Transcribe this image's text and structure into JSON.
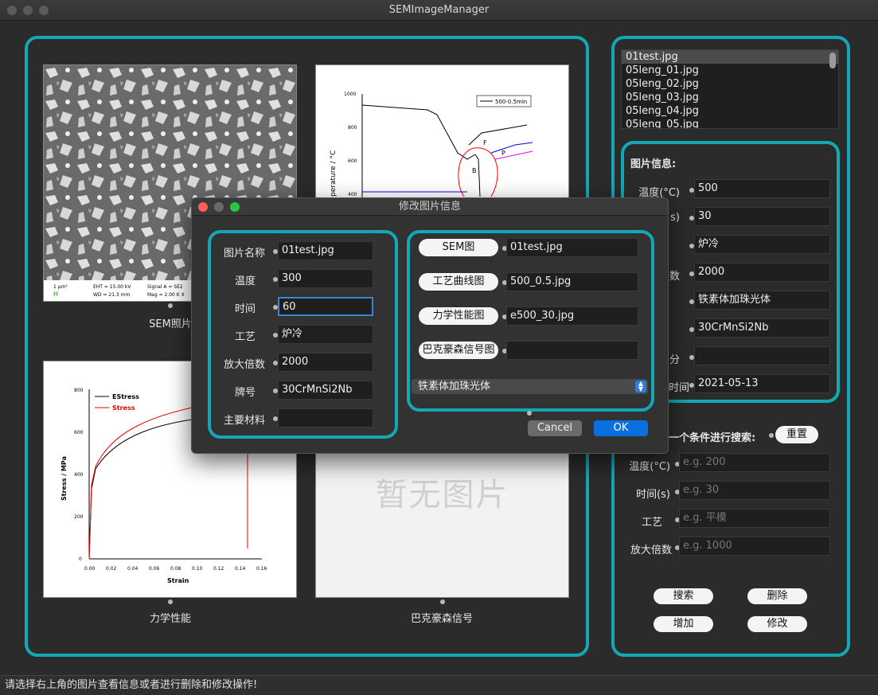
{
  "window": {
    "title": "SEMImageManager"
  },
  "images": {
    "sem": {
      "caption": "SEM照片",
      "info": [
        "1 μm²",
        "EHT = 15.00 kV",
        "Signal A = SE2",
        "WD = 21.3 mm",
        "Mag = 2.00 K X"
      ]
    },
    "curve": {
      "ylabel": "perature / °C",
      "legend": "500-0.5min",
      "yticks": [
        "1000",
        "800",
        "600",
        "400"
      ],
      "labels": [
        "F",
        "P",
        "B"
      ]
    },
    "mech": {
      "caption": "力学性能",
      "ylabel": "Stress / MPa",
      "xlabel": "Strain",
      "legend": [
        "EStress",
        "Stress"
      ],
      "yticks": [
        "800",
        "600",
        "400",
        "200",
        "0"
      ],
      "xticks": [
        "0.00",
        "0.02",
        "0.04",
        "0.06",
        "0.08",
        "0.10",
        "0.12",
        "0.14",
        "0.16"
      ]
    },
    "bark": {
      "caption": "巴克豪森信号",
      "empty_text": "暂无图片"
    }
  },
  "file_list": [
    "01test.jpg",
    "05leng_01.jpg",
    "05leng_02.jpg",
    "05leng_03.jpg",
    "05leng_04.jpg",
    "05leng_05.jpg"
  ],
  "info_panel": {
    "title": "图片信息:",
    "rows": [
      {
        "label": "温度(°C)",
        "value": "500"
      },
      {
        "label": "s)",
        "value": "30"
      },
      {
        "label": "",
        "value": "炉冷"
      },
      {
        "label": "数",
        "value": "2000"
      },
      {
        "label": "",
        "value": "铁素体加珠光体"
      },
      {
        "label": "",
        "value": "30CrMnSi2Nb"
      },
      {
        "label": "分",
        "value": ""
      },
      {
        "label": "时间",
        "value": "2021-05-13"
      }
    ]
  },
  "search": {
    "title": "一个条件进行搜索:",
    "reset": "重置",
    "rows": [
      {
        "label": "温度(°C)",
        "placeholder": "e.g. 200"
      },
      {
        "label": "时间(s)",
        "placeholder": "e.g. 30"
      },
      {
        "label": "工艺",
        "placeholder": "e.g. 平模"
      },
      {
        "label": "放大倍数",
        "placeholder": "e.g. 1000"
      }
    ]
  },
  "actions": {
    "search": "搜索",
    "delete": "删除",
    "add": "增加",
    "edit": "修改"
  },
  "status": "请选择右上角的图片查看信息或者进行删除和修改操作!",
  "dialog": {
    "title": "修改图片信息",
    "fields": [
      {
        "label": "图片名称",
        "value": "01test.jpg"
      },
      {
        "label": "温度",
        "value": "300"
      },
      {
        "label": "时间",
        "value": "60"
      },
      {
        "label": "工艺",
        "value": "炉冷"
      },
      {
        "label": "放大倍数",
        "value": "2000"
      },
      {
        "label": "牌号",
        "value": "30CrMnSi2Nb"
      },
      {
        "label": "主要材料",
        "value": ""
      }
    ],
    "files": [
      {
        "button": "SEM图",
        "value": "01test.jpg"
      },
      {
        "button": "工艺曲线图",
        "value": "500_0.5.jpg"
      },
      {
        "button": "力学性能图",
        "value": "e500_30.jpg"
      },
      {
        "button": "巴克豪森信号图",
        "value": ""
      }
    ],
    "select": "铁素体加珠光体",
    "cancel": "Cancel",
    "ok": "OK"
  },
  "colors": {
    "accent": "#14a7b5",
    "ok": "#0a6fe0"
  }
}
